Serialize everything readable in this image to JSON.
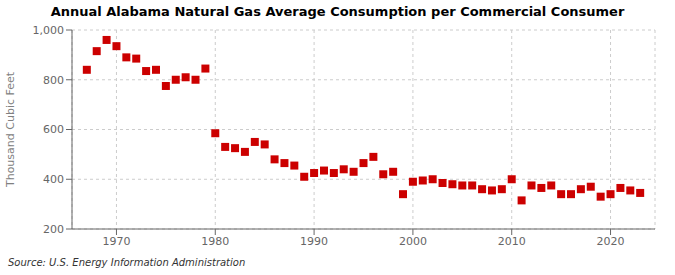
{
  "chart_data": {
    "type": "scatter",
    "title": "Annual Alabama Natural Gas Average Consumption per Commercial Consumer",
    "ylabel": "Thousand Cubic Feet",
    "annotation": "Source: U.S. Energy Information Administration",
    "x": [
      1967,
      1968,
      1969,
      1970,
      1971,
      1972,
      1973,
      1974,
      1975,
      1976,
      1977,
      1978,
      1979,
      1980,
      1981,
      1982,
      1983,
      1984,
      1985,
      1986,
      1987,
      1988,
      1989,
      1990,
      1991,
      1992,
      1993,
      1994,
      1995,
      1996,
      1997,
      1998,
      1999,
      2000,
      2001,
      2002,
      2003,
      2004,
      2005,
      2006,
      2007,
      2008,
      2009,
      2010,
      2011,
      2012,
      2013,
      2014,
      2015,
      2016,
      2017,
      2018,
      2019,
      2020,
      2021,
      2022,
      2023
    ],
    "values": [
      840,
      915,
      960,
      935,
      890,
      885,
      835,
      840,
      775,
      800,
      810,
      800,
      845,
      585,
      530,
      525,
      510,
      550,
      540,
      480,
      465,
      455,
      410,
      425,
      435,
      425,
      440,
      430,
      465,
      490,
      420,
      430,
      340,
      390,
      395,
      400,
      385,
      380,
      375,
      375,
      360,
      355,
      360,
      400,
      315,
      375,
      365,
      375,
      340,
      340,
      360,
      370,
      330,
      340,
      365,
      355,
      345
    ],
    "color": "#cc0000",
    "marker": "square",
    "xlim": [
      1965.5,
      2024.5
    ],
    "xticks": [
      1970,
      1980,
      1990,
      2000,
      2010,
      2020
    ],
    "ylim": [
      200,
      1000
    ],
    "yticks": [
      200,
      400,
      600,
      800,
      {
        "value": 1000,
        "label": "1,000"
      }
    ],
    "grid": true
  }
}
